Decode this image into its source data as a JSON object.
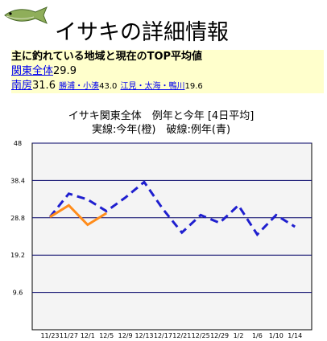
{
  "header": {
    "title": "イサキの詳細情報"
  },
  "summary": {
    "heading": "主に釣れている地域と現在のTOP平均値",
    "areas": [
      {
        "name": "関東全体",
        "value": "29.9"
      },
      {
        "name": "南房",
        "value": "31.6"
      },
      {
        "name": "勝浦・小湊",
        "value": "43.0"
      },
      {
        "name": "江見・太海・鴨川",
        "value": "19.6"
      }
    ]
  },
  "chart_data": {
    "type": "line",
    "title": "イサキ関東全体　例年と今年 [4日平均]",
    "subtitle": "実線:今年(橙)　破線:例年(青)",
    "categories": [
      "11/23",
      "11/27",
      "12/1",
      "12/5",
      "12/9",
      "12/13",
      "12/17",
      "12/21",
      "12/25",
      "12/29",
      "1/2",
      "1/6",
      "1/10",
      "1/14"
    ],
    "series": [
      {
        "name": "例年",
        "color": "#1f1fcf",
        "dashed": true,
        "values": [
          29,
          35,
          33.5,
          30.5,
          34,
          38,
          31,
          25,
          29.5,
          27.5,
          32,
          24.5,
          29.5,
          26.5
        ]
      },
      {
        "name": "今年",
        "color": "#ff8c1a",
        "dashed": false,
        "values": [
          29,
          32,
          27,
          30,
          null,
          null,
          null,
          null,
          null,
          null,
          null,
          null,
          null,
          null
        ]
      }
    ],
    "ylim": [
      0,
      48
    ],
    "yticks": [
      9.6,
      19.2,
      28.8,
      38.4,
      48
    ],
    "grid": true
  }
}
